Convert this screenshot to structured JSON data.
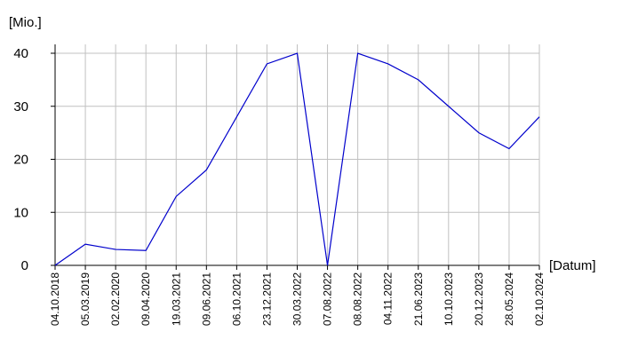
{
  "chart_data": {
    "type": "line",
    "y_label": "[Mio.]",
    "x_label": "[Datum]",
    "categories": [
      "04.10.2018",
      "05.03.2019",
      "02.02.2020",
      "09.04.2020",
      "19.03.2021",
      "09.06.2021",
      "06.10.2021",
      "23.12.2021",
      "30.03.2022",
      "07.08.2022",
      "08.08.2022",
      "04.11.2022",
      "21.06.2023",
      "10.10.2023",
      "20.12.2023",
      "28.05.2024",
      "02.10.2024"
    ],
    "values": [
      0,
      4,
      3,
      2.8,
      13,
      18,
      28,
      38,
      40,
      0,
      40,
      38,
      35,
      30,
      25,
      22,
      28
    ],
    "color": "#0000cc",
    "ylim": [
      0,
      40
    ],
    "yticks": [
      0,
      10,
      20,
      30,
      40
    ],
    "grid": true
  }
}
